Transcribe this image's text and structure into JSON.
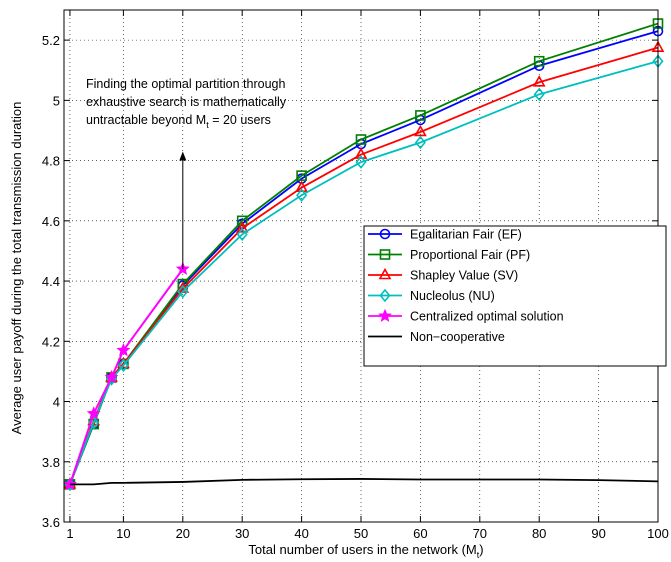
{
  "chart_data": {
    "type": "line",
    "title": "",
    "xlabel": "Total number of users in the network (M",
    "xlabel_sub": "t",
    "xlabel_close": ")",
    "ylabel": "Average user payoff during the total transmission duration",
    "xlim": [
      0,
      100
    ],
    "ylim": [
      3.6,
      5.3
    ],
    "x_ticks": [
      1,
      10,
      20,
      30,
      40,
      50,
      60,
      70,
      80,
      90,
      100
    ],
    "y_ticks": [
      3.6,
      3.8,
      4,
      4.2,
      4.4,
      4.6,
      4.8,
      5,
      5.2
    ],
    "y_tick_labels": [
      "3.6",
      "3.8",
      "4",
      "4.2",
      "4.4",
      "4.6",
      "4.8",
      "5",
      "5.2"
    ],
    "grid": true,
    "legend_position": "right",
    "annotation": {
      "lines": [
        "Finding the optimal partition through",
        "exhaustive search is mathematically",
        "untractable beyond M"
      ],
      "sub": "t",
      "tail": " = 20 users",
      "arrow_x": 20,
      "arrow_from_y": 4.44,
      "arrow_to_y": 4.83
    },
    "series": [
      {
        "name": "Egalitarian Fair (EF)",
        "color": "#0000ff",
        "marker": "circle",
        "x": [
          1,
          5,
          8,
          10,
          20,
          30,
          40,
          50,
          60,
          80,
          100
        ],
        "y": [
          3.725,
          3.925,
          4.08,
          4.125,
          4.385,
          4.59,
          4.74,
          4.855,
          4.935,
          5.115,
          5.23
        ]
      },
      {
        "name": "Proportional Fair (PF)",
        "color": "#008000",
        "marker": "square",
        "x": [
          1,
          5,
          8,
          10,
          20,
          30,
          40,
          50,
          60,
          80,
          100
        ],
        "y": [
          3.725,
          3.925,
          4.08,
          4.125,
          4.39,
          4.6,
          4.75,
          4.87,
          4.95,
          5.13,
          5.255
        ]
      },
      {
        "name": "Shapley Value (SV)",
        "color": "#ff0000",
        "marker": "triangle",
        "x": [
          1,
          5,
          8,
          10,
          20,
          30,
          40,
          50,
          60,
          80,
          100
        ],
        "y": [
          3.725,
          3.935,
          4.08,
          4.125,
          4.375,
          4.575,
          4.71,
          4.82,
          4.895,
          5.06,
          5.175
        ]
      },
      {
        "name": "Nucleolus (NU)",
        "color": "#00bfbf",
        "marker": "diamond",
        "x": [
          1,
          5,
          8,
          10,
          20,
          30,
          40,
          50,
          60,
          80,
          100
        ],
        "y": [
          3.725,
          3.93,
          4.075,
          4.12,
          4.365,
          4.555,
          4.685,
          4.795,
          4.86,
          5.02,
          5.13
        ]
      },
      {
        "name": "Centralized optimal solution",
        "color": "#ff00ff",
        "marker": "star",
        "x": [
          1,
          5,
          8,
          10,
          20
        ],
        "y": [
          3.725,
          3.96,
          4.08,
          4.17,
          4.44
        ]
      },
      {
        "name": "Non−cooperative",
        "color": "#000000",
        "marker": "none",
        "x": [
          1,
          5,
          8,
          10,
          20,
          30,
          40,
          50,
          60,
          70,
          80,
          90,
          100
        ],
        "y": [
          3.725,
          3.725,
          3.73,
          3.73,
          3.733,
          3.74,
          3.742,
          3.743,
          3.741,
          3.741,
          3.741,
          3.739,
          3.735
        ]
      }
    ]
  }
}
